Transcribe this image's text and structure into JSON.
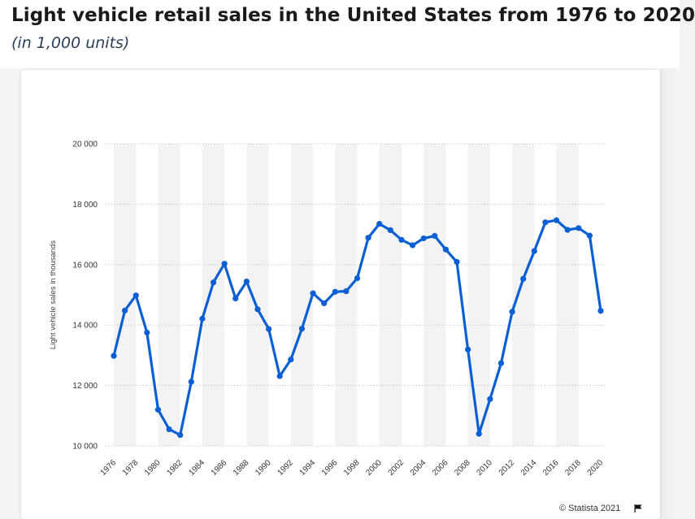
{
  "header": {
    "title": "Light vehicle retail sales in the United States from 1976 to 2020",
    "subtitle": "(in 1,000 units)"
  },
  "footer": {
    "credit": "© Statista 2021"
  },
  "icons": {
    "flag": "flag-icon"
  },
  "colors": {
    "series": "#0a5fd6",
    "stripe": "#f3f3f3",
    "grid": "#c9c9c9"
  },
  "chart_data": {
    "type": "line",
    "title": "Light vehicle retail sales in the United States from 1976 to 2020",
    "subtitle": "(in 1,000 units)",
    "xlabel": "",
    "ylabel": "Light vehicle sales in thousands",
    "ylim": [
      10000,
      20000
    ],
    "yticks": [
      10000,
      12000,
      14000,
      16000,
      18000,
      20000
    ],
    "ytick_labels": [
      "10 000",
      "12 000",
      "14 000",
      "16 000",
      "18 000",
      "20 000"
    ],
    "xtick_labels": [
      "1976",
      "1978",
      "1980",
      "1982",
      "1984",
      "1986",
      "1988",
      "1990",
      "1992",
      "1994",
      "1996",
      "1998",
      "2000",
      "2002",
      "2004",
      "2006",
      "2008",
      "2010",
      "2012",
      "2014",
      "2016",
      "2018",
      "2020"
    ],
    "grid": true,
    "legend": "none",
    "x": [
      1976,
      1977,
      1978,
      1979,
      1980,
      1981,
      1982,
      1983,
      1984,
      1985,
      1986,
      1987,
      1988,
      1989,
      1990,
      1991,
      1992,
      1993,
      1994,
      1995,
      1996,
      1997,
      1998,
      1999,
      2000,
      2001,
      2002,
      2003,
      2004,
      2005,
      2006,
      2007,
      2008,
      2009,
      2010,
      2011,
      2012,
      2013,
      2014,
      2015,
      2016,
      2017,
      2018,
      2019,
      2020
    ],
    "series": [
      {
        "values": [
          12980,
          14480,
          14980,
          13750,
          11200,
          10550,
          10360,
          12120,
          14210,
          15410,
          16030,
          14880,
          15440,
          14520,
          13870,
          12310,
          12860,
          13880,
          15050,
          14720,
          15100,
          15120,
          15550,
          16890,
          17350,
          17140,
          16820,
          16640,
          16870,
          16950,
          16500,
          16090,
          13190,
          10400,
          11550,
          12740,
          14440,
          15530,
          16450,
          17400,
          17470,
          17150,
          17210,
          16960,
          14470
        ]
      }
    ]
  }
}
